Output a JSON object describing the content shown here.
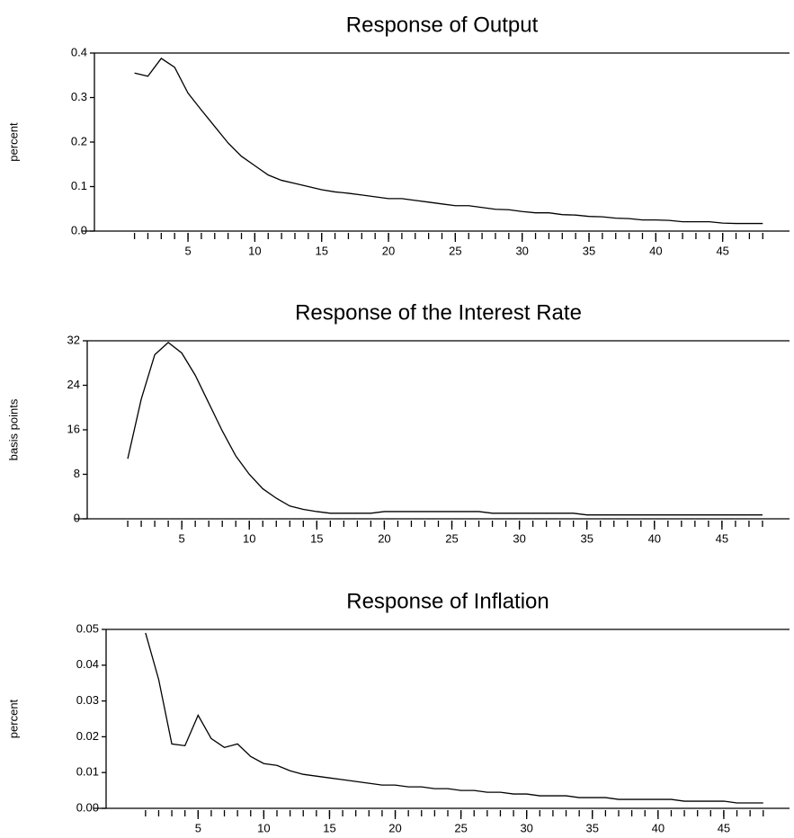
{
  "chart_data": [
    {
      "type": "line",
      "title": "Response of Output",
      "ylabel": "percent",
      "x": [
        1,
        2,
        3,
        4,
        5,
        6,
        7,
        8,
        9,
        10,
        11,
        12,
        13,
        14,
        15,
        16,
        17,
        18,
        19,
        20,
        21,
        22,
        23,
        24,
        25,
        26,
        27,
        28,
        29,
        30,
        31,
        32,
        33,
        34,
        35,
        36,
        37,
        38,
        39,
        40,
        41,
        42,
        43,
        44,
        45,
        46,
        47,
        48
      ],
      "values": [
        0.355,
        0.348,
        0.388,
        0.368,
        0.31,
        0.272,
        0.235,
        0.198,
        0.168,
        0.147,
        0.126,
        0.114,
        0.107,
        0.1,
        0.093,
        0.088,
        0.085,
        0.081,
        0.077,
        0.073,
        0.073,
        0.069,
        0.065,
        0.061,
        0.057,
        0.057,
        0.053,
        0.049,
        0.048,
        0.044,
        0.041,
        0.041,
        0.037,
        0.036,
        0.033,
        0.032,
        0.029,
        0.028,
        0.025,
        0.025,
        0.024,
        0.021,
        0.021,
        0.021,
        0.018,
        0.017,
        0.017,
        0.017
      ],
      "color": "#000000",
      "xlim": [
        -2,
        50
      ],
      "xticks": [
        5,
        10,
        15,
        20,
        25,
        30,
        35,
        40,
        45
      ],
      "xminorticks": [
        1,
        2,
        3,
        4,
        5,
        6,
        7,
        8,
        9,
        10,
        11,
        12,
        13,
        14,
        15,
        16,
        17,
        18,
        19,
        20,
        21,
        22,
        23,
        24,
        25,
        26,
        27,
        28,
        29,
        30,
        31,
        32,
        33,
        34,
        35,
        36,
        37,
        38,
        39,
        40,
        41,
        42,
        43,
        44,
        45,
        46,
        47,
        48
      ],
      "ylim": [
        0,
        0.4
      ],
      "yticks": [
        {
          "value": 0,
          "label": "0.0"
        },
        0.1,
        0.2,
        0.3,
        0.4
      ]
    },
    {
      "type": "line",
      "title": "Response of the Interest Rate",
      "ylabel": "basis points",
      "x": [
        1,
        2,
        3,
        4,
        5,
        6,
        7,
        8,
        9,
        10,
        11,
        12,
        13,
        14,
        15,
        16,
        17,
        18,
        19,
        20,
        21,
        22,
        23,
        24,
        25,
        26,
        27,
        28,
        29,
        30,
        31,
        32,
        33,
        34,
        35,
        36,
        37,
        38,
        39,
        40,
        41,
        42,
        43,
        44,
        45,
        46,
        47,
        48
      ],
      "values": [
        10.8,
        21.5,
        29.5,
        31.7,
        29.8,
        25.8,
        20.8,
        15.8,
        11.3,
        8,
        5.4,
        3.7,
        2.3,
        1.7,
        1.3,
        1.0,
        1.0,
        1.0,
        1.0,
        1.3,
        1.3,
        1.3,
        1.3,
        1.3,
        1.3,
        1.3,
        1.3,
        1.0,
        1.0,
        1.0,
        1.0,
        1.0,
        1.0,
        1.0,
        0.7,
        0.7,
        0.7,
        0.7,
        0.7,
        0.7,
        0.7,
        0.7,
        0.7,
        0.7,
        0.7,
        0.7,
        0.7,
        0.7
      ],
      "color": "#000000",
      "xlim": [
        -2,
        50
      ],
      "xticks": [
        5,
        10,
        15,
        20,
        25,
        30,
        35,
        40,
        45
      ],
      "xminorticks": [
        1,
        2,
        3,
        4,
        5,
        6,
        7,
        8,
        9,
        10,
        11,
        12,
        13,
        14,
        15,
        16,
        17,
        18,
        19,
        20,
        21,
        22,
        23,
        24,
        25,
        26,
        27,
        28,
        29,
        30,
        31,
        32,
        33,
        34,
        35,
        36,
        37,
        38,
        39,
        40,
        41,
        42,
        43,
        44,
        45,
        46,
        47,
        48
      ],
      "ylim": [
        0,
        32
      ],
      "yticks": [
        0,
        8,
        16,
        24,
        32
      ]
    },
    {
      "type": "line",
      "title": "Response of Inflation",
      "ylabel": "percent",
      "x": [
        1,
        2,
        3,
        4,
        5,
        6,
        7,
        8,
        9,
        10,
        11,
        12,
        13,
        14,
        15,
        16,
        17,
        18,
        19,
        20,
        21,
        22,
        23,
        24,
        25,
        26,
        27,
        28,
        29,
        30,
        31,
        32,
        33,
        34,
        35,
        36,
        37,
        38,
        39,
        40,
        41,
        42,
        43,
        44,
        45,
        46,
        47,
        48
      ],
      "values": [
        0.049,
        0.036,
        0.018,
        0.0175,
        0.026,
        0.0195,
        0.017,
        0.018,
        0.0145,
        0.0125,
        0.012,
        0.0105,
        0.0095,
        0.009,
        0.0085,
        0.008,
        0.0075,
        0.007,
        0.0065,
        0.0065,
        0.006,
        0.006,
        0.0055,
        0.0055,
        0.005,
        0.005,
        0.0045,
        0.0045,
        0.004,
        0.004,
        0.0035,
        0.0035,
        0.0035,
        0.003,
        0.003,
        0.003,
        0.0025,
        0.0025,
        0.0025,
        0.0025,
        0.0025,
        0.002,
        0.002,
        0.002,
        0.002,
        0.0015,
        0.0015,
        0.0015
      ],
      "color": "#000000",
      "xlim": [
        -2,
        50
      ],
      "xticks": [
        5,
        10,
        15,
        20,
        25,
        30,
        35,
        40,
        45
      ],
      "xminorticks": [
        1,
        2,
        3,
        4,
        5,
        6,
        7,
        8,
        9,
        10,
        11,
        12,
        13,
        14,
        15,
        16,
        17,
        18,
        19,
        20,
        21,
        22,
        23,
        24,
        25,
        26,
        27,
        28,
        29,
        30,
        31,
        32,
        33,
        34,
        35,
        36,
        37,
        38,
        39,
        40,
        41,
        42,
        43,
        44,
        45,
        46,
        47,
        48
      ],
      "ylim": [
        0,
        0.05
      ],
      "yticks": [
        {
          "value": 0,
          "label": "0.00"
        },
        0.01,
        0.02,
        0.03,
        0.04,
        0.05
      ]
    }
  ]
}
